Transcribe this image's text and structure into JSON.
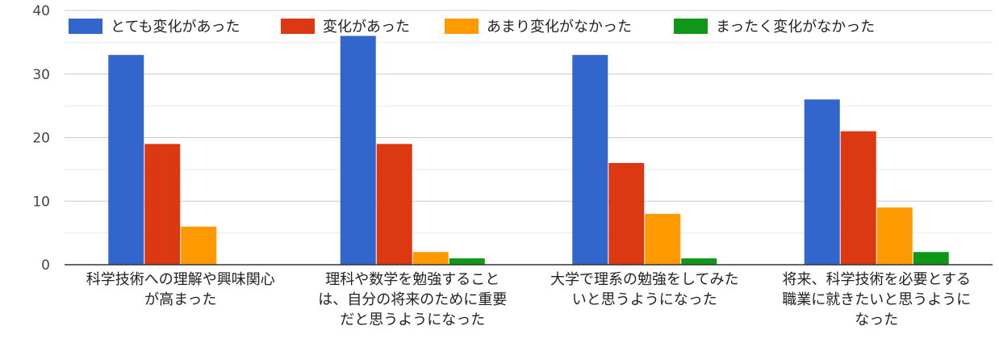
{
  "chart_data": {
    "type": "bar",
    "title": "",
    "xlabel": "",
    "ylabel": "",
    "ylim": [
      0,
      40
    ],
    "yticks": [
      0,
      10,
      20,
      30,
      40
    ],
    "grid": true,
    "legend_position": "top",
    "categories": [
      [
        "科学技術への理解や興味関心",
        "が高まった"
      ],
      [
        "理科や数学を勉強すること",
        "は、自分の将来のために重要",
        "だと思うようになった"
      ],
      [
        "大学で理系の勉強をしてみた",
        "いと思うようになった"
      ],
      [
        "将来、科学技術を必要とする",
        "職業に就きたいと思うように",
        "なった"
      ]
    ],
    "series": [
      {
        "name": "とても変化があった",
        "color": "#3366cc",
        "values": [
          33,
          36,
          33,
          26
        ]
      },
      {
        "name": "変化があった",
        "color": "#dc3912",
        "values": [
          19,
          19,
          16,
          21
        ]
      },
      {
        "name": "あまり変化がなかった",
        "color": "#ff9900",
        "values": [
          6,
          2,
          8,
          9
        ]
      },
      {
        "name": "まったく変化がなかった",
        "color": "#109618",
        "values": [
          0,
          1,
          1,
          2
        ]
      }
    ]
  }
}
